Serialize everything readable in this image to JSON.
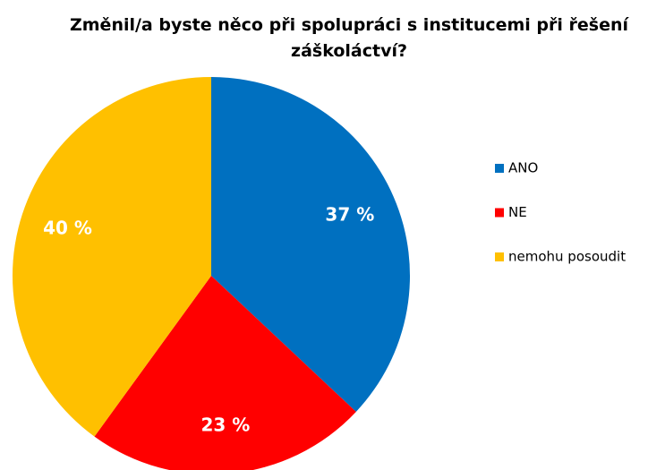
{
  "chart_data": {
    "type": "pie",
    "title": "Změnil/a byste něco při spolupráci s institucemi při řešení záškoláctví?",
    "categories": [
      "ANO",
      "NE",
      "nemohu posoudit"
    ],
    "values": [
      37,
      23,
      40
    ],
    "value_labels": [
      "37 %",
      "23 %",
      "40 %"
    ],
    "colors": [
      "#0070c0",
      "#ff0000",
      "#ffc000"
    ],
    "legend": "right"
  }
}
